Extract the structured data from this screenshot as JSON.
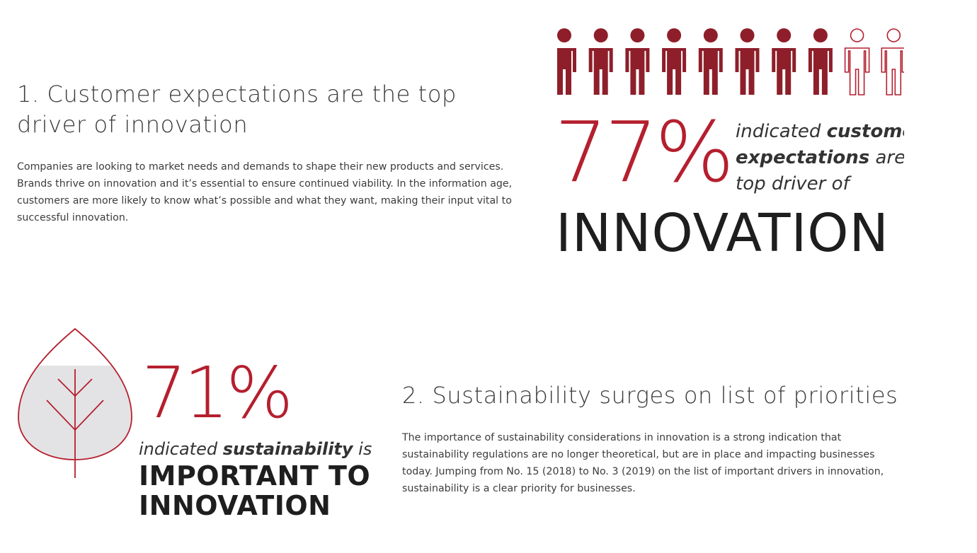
{
  "section1": {
    "heading": "1. Customer expectations are the top driver of innovation",
    "body": "Companies are looking to market needs and demands to shape their new products and services. Brands thrive on innovation and it’s essential to ensure continued viability. In the information age, customers are more likely to know what’s possible and what they want, making their input vital to successful innovation.",
    "infographic": {
      "people_total": 10,
      "people_filled": 8,
      "percent": "77%",
      "stat_line1_pre": "indicated ",
      "stat_line1_bold": "customer",
      "stat_line2_bold": "expectations",
      "stat_line2_post": " are a",
      "stat_line3": "top driver of",
      "big_word": "INNOVATION"
    }
  },
  "section2": {
    "heading": "2. Sustainability surges on list of priorities",
    "body": "The importance of sustainability considerations in innovation is a strong indication that sustainability regulations are no longer theoretical, but are in place and impacting businesses today. Jumping from No. 15 (2018) to No. 3 (2019) on the list of important drivers in innovation, sustainability is a clear priority for businesses.",
    "infographic": {
      "icon": "leaf-icon",
      "percent": "71%",
      "stat_pre": "indicated ",
      "stat_bold": "sustainability",
      "stat_post": " is",
      "big_line1": "IMPORTANT TO",
      "big_line2": "INNOVATION"
    }
  },
  "colors": {
    "accent_red": "#b51f2e",
    "filled_person": "#8e1f2a",
    "leaf_fill": "#e3e3e5"
  }
}
